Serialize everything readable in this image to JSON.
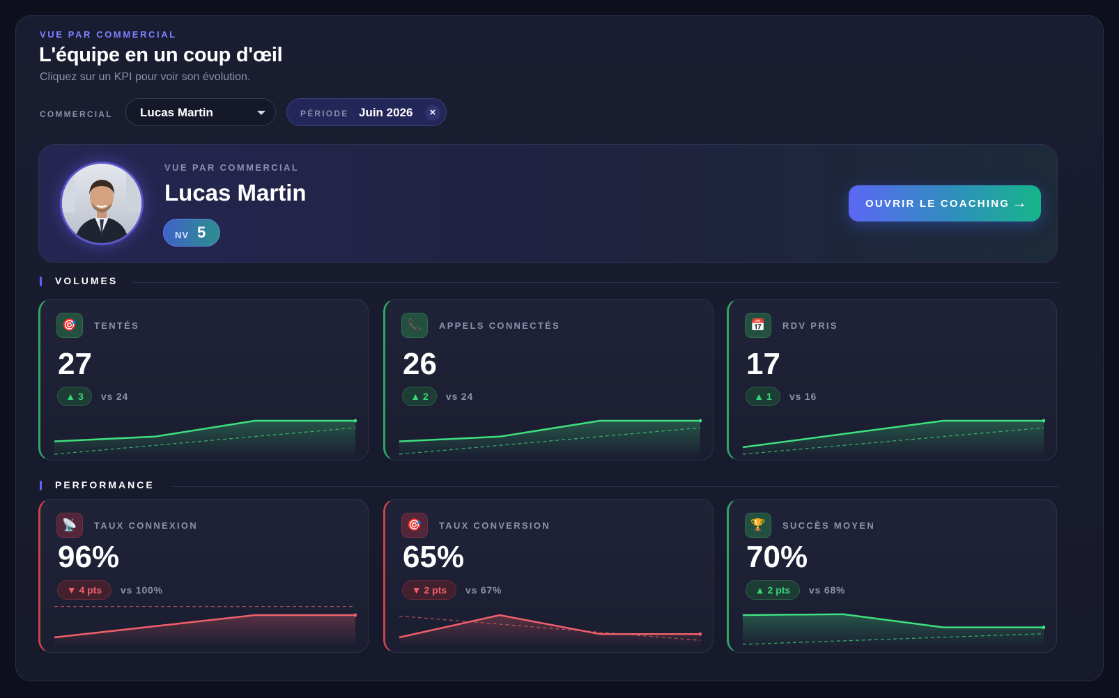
{
  "header": {
    "eyebrow": "VUE PAR COMMERCIAL",
    "title": "L'équipe en un coup d'œil",
    "subtitle": "Cliquez sur un KPI pour voir son évolution."
  },
  "filters": {
    "commercial_label": "COMMERCIAL",
    "commercial_value": "Lucas Martin",
    "period_label": "PÉRIODE",
    "period_value": "Juin 2026",
    "clear_glyph": "×"
  },
  "profile": {
    "eyebrow": "VUE PAR COMMERCIAL",
    "name": "Lucas Martin",
    "level_prefix": "NV",
    "level": "5",
    "coaching_label": "OUVRIR LE COACHING",
    "coaching_arrow": "→"
  },
  "sections": {
    "volumes": "VOLUMES",
    "performance": "PERFORMANCE"
  },
  "colors": {
    "good": "#3ee07f",
    "bad": "#f0606a",
    "accent": "#7b82ff"
  },
  "kpis": [
    {
      "id": "tentes",
      "icon": "🎯",
      "icon_name": "target-icon",
      "label": "TENTÉS",
      "value": "27",
      "delta": "▲ 3",
      "compare": "vs 24",
      "status": "good",
      "trend": [
        0.22,
        0.4,
        1.0,
        1.0
      ],
      "baseline": [
        0.0,
        1.0
      ]
    },
    {
      "id": "appels",
      "icon": "📞",
      "icon_name": "phone-icon",
      "label": "APPELS CONNECTÉS",
      "value": "26",
      "delta": "▲ 2",
      "compare": "vs 24",
      "status": "good",
      "trend": [
        0.22,
        0.4,
        1.0,
        1.0
      ],
      "baseline": [
        0.0,
        1.0
      ]
    },
    {
      "id": "rdv",
      "icon": "📅",
      "icon_name": "calendar-icon",
      "label": "RDV PRIS",
      "value": "17",
      "delta": "▲ 1",
      "compare": "vs 16",
      "status": "good",
      "trend": [
        0.0,
        0.5,
        1.0,
        1.0
      ],
      "baseline": [
        0.0,
        1.0
      ]
    },
    {
      "id": "taux_connexion",
      "icon": "📡",
      "icon_name": "satellite-dish-icon",
      "label": "TAUX CONNEXION",
      "value": "96%",
      "delta": "▼ 4 pts",
      "compare": "vs 100%",
      "status": "bad",
      "trend": [
        0.0,
        0.5,
        1.0,
        1.0
      ],
      "baseline": [
        1.7,
        1.7
      ]
    },
    {
      "id": "taux_conversion",
      "icon": "🎯",
      "icon_name": "target-icon",
      "label": "TAUX CONVERSION",
      "value": "65%",
      "delta": "▼ 2 pts",
      "compare": "vs 67%",
      "status": "bad",
      "trend": [
        0.0,
        1.0,
        0.15,
        0.15
      ],
      "baseline": [
        1.27,
        0.18
      ]
    },
    {
      "id": "succes_moyen",
      "icon": "🏆",
      "icon_name": "trophy-icon",
      "label": "SUCCÈS MOYEN",
      "value": "70%",
      "delta": "▲ 2 pts",
      "compare": "vs 68%",
      "status": "good",
      "trend": [
        1.0,
        1.04,
        0.45,
        0.45
      ],
      "baseline": [
        0.0,
        0.48
      ]
    }
  ]
}
